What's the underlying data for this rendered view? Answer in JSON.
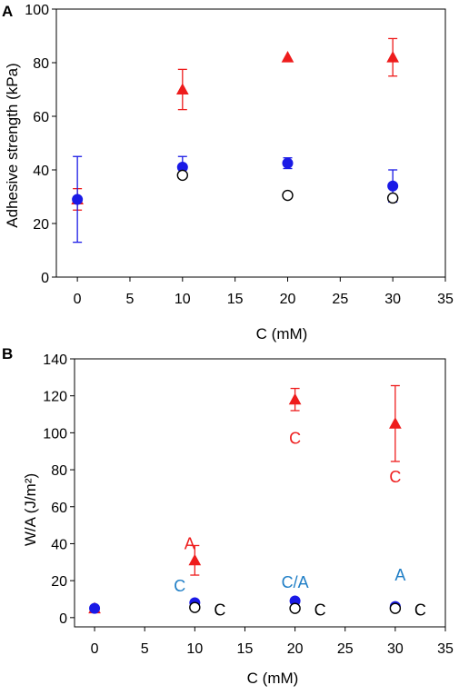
{
  "chart_data": [
    {
      "panel": "A",
      "type": "scatter",
      "xlabel": "C (mM)",
      "ylabel": "Adhesive strength (kPa)",
      "xlim": [
        -2,
        35
      ],
      "ylim": [
        0,
        100
      ],
      "xticks": [
        0,
        5,
        10,
        15,
        20,
        25,
        30,
        35
      ],
      "yticks": [
        0,
        20,
        40,
        60,
        80,
        100
      ],
      "series": [
        {
          "marker": "triangle",
          "color": "#ee1c1c",
          "filled": true,
          "points": [
            {
              "x": 0,
              "y": 29,
              "err": 4
            },
            {
              "x": 10,
              "y": 70,
              "err": 7.5
            },
            {
              "x": 20,
              "y": 82,
              "err": 0
            },
            {
              "x": 30,
              "y": 82,
              "err": 7
            }
          ]
        },
        {
          "marker": "circle",
          "color": "#1a1ae6",
          "filled": true,
          "points": [
            {
              "x": 0,
              "y": 29,
              "err": 16
            },
            {
              "x": 10,
              "y": 41,
              "err": 4
            },
            {
              "x": 20,
              "y": 42.5,
              "err": 2
            },
            {
              "x": 30,
              "y": 34,
              "err": 6
            }
          ]
        },
        {
          "marker": "circle",
          "color": "#000000",
          "filled": false,
          "points": [
            {
              "x": 10,
              "y": 38,
              "err": 0
            },
            {
              "x": 20,
              "y": 30.5,
              "err": 0
            },
            {
              "x": 30,
              "y": 29.5,
              "err": 0
            }
          ]
        }
      ],
      "annotations": []
    },
    {
      "panel": "B",
      "type": "scatter",
      "xlabel": "C (mM)",
      "ylabel": "W/A (J/m²)",
      "xlim": [
        -2,
        35
      ],
      "ylim": [
        -5,
        140
      ],
      "xticks": [
        0,
        5,
        10,
        15,
        20,
        25,
        30,
        35
      ],
      "yticks": [
        0,
        20,
        40,
        60,
        80,
        100,
        120,
        140
      ],
      "series": [
        {
          "marker": "triangle",
          "color": "#ee1c1c",
          "filled": true,
          "points": [
            {
              "x": 0,
              "y": 5,
              "err": 0
            },
            {
              "x": 10,
              "y": 31,
              "err": 8
            },
            {
              "x": 20,
              "y": 118,
              "err": 6
            },
            {
              "x": 30,
              "y": 105,
              "err": 20.5
            }
          ]
        },
        {
          "marker": "circle",
          "color": "#1a1ae6",
          "filled": true,
          "points": [
            {
              "x": 0,
              "y": 5,
              "err": 0
            },
            {
              "x": 10,
              "y": 8,
              "err": 0
            },
            {
              "x": 20,
              "y": 9,
              "err": 0
            },
            {
              "x": 30,
              "y": 6,
              "err": 0
            }
          ]
        },
        {
          "marker": "circle",
          "color": "#000000",
          "filled": false,
          "points": [
            {
              "x": 10,
              "y": 5.5,
              "err": 0
            },
            {
              "x": 20,
              "y": 5,
              "err": 0
            },
            {
              "x": 30,
              "y": 5,
              "err": 0
            }
          ]
        }
      ],
      "annotations": [
        {
          "text": "C",
          "x": 20,
          "y": 97,
          "color": "#ee1c1c"
        },
        {
          "text": "C",
          "x": 30,
          "y": 76,
          "color": "#ee1c1c"
        },
        {
          "text": "A",
          "x": 9.5,
          "y": 40,
          "color": "#ee1c1c"
        },
        {
          "text": "C",
          "x": 8.5,
          "y": 17,
          "color": "#1f7ec6"
        },
        {
          "text": "C/A",
          "x": 20,
          "y": 19,
          "color": "#1f7ec6"
        },
        {
          "text": "A",
          "x": 30.5,
          "y": 23,
          "color": "#1f7ec6"
        },
        {
          "text": "C",
          "x": 12.5,
          "y": 4,
          "color": "#000000"
        },
        {
          "text": "C",
          "x": 22.5,
          "y": 4,
          "color": "#000000"
        },
        {
          "text": "C",
          "x": 32.5,
          "y": 4,
          "color": "#000000"
        }
      ]
    }
  ]
}
